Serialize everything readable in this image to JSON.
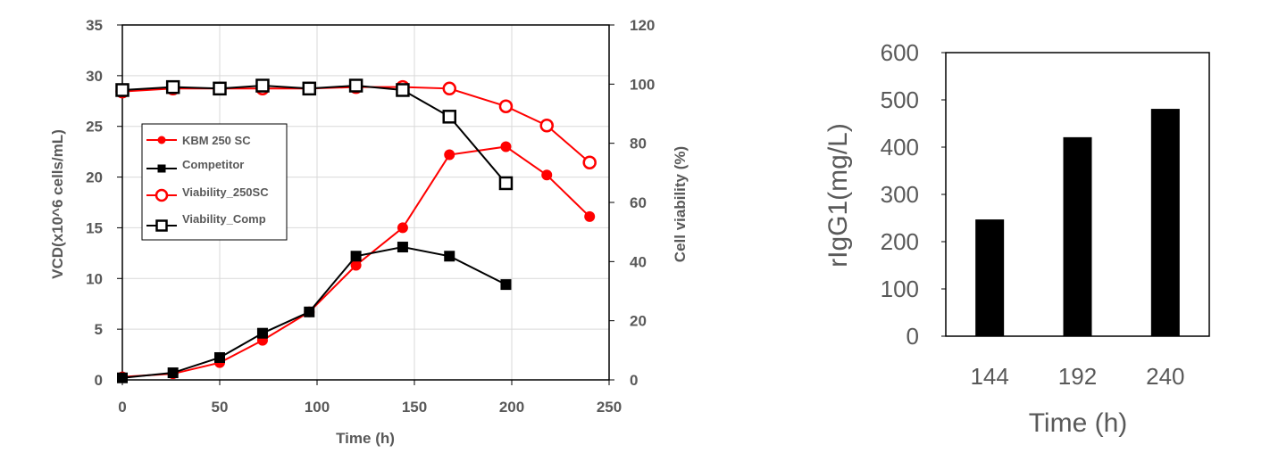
{
  "chart_data": [
    {
      "type": "line",
      "xlabel": "Time (h)",
      "ylabel": "VCD(x10^6  cells/mL)",
      "y2label": "Cell viability (%)",
      "xlim": [
        0,
        250
      ],
      "ylim": [
        0,
        35
      ],
      "y2lim": [
        0,
        120
      ],
      "xticks": [
        0,
        50,
        100,
        150,
        200,
        250
      ],
      "yticks": [
        0,
        5,
        10,
        15,
        20,
        25,
        30,
        35
      ],
      "y2ticks": [
        0,
        20,
        40,
        60,
        80,
        100,
        120
      ],
      "grid": true,
      "legend_position": "upper-left inside plot",
      "series": [
        {
          "name": "KBM  250 SC",
          "axis": "left",
          "color": "#ff0000",
          "marker": "filled-circle",
          "x": [
            0,
            26,
            50,
            72,
            96,
            120,
            144,
            168,
            197,
            218,
            240
          ],
          "y": [
            0.3,
            0.6,
            1.7,
            3.9,
            6.7,
            11.3,
            15.0,
            22.2,
            23.0,
            20.2,
            16.1
          ]
        },
        {
          "name": "Competitor",
          "axis": "left",
          "color": "#000000",
          "marker": "filled-square",
          "x": [
            0,
            26,
            50,
            72,
            96,
            120,
            144,
            168,
            197
          ],
          "y": [
            0.2,
            0.7,
            2.2,
            4.6,
            6.7,
            12.2,
            13.1,
            12.2,
            9.4
          ]
        },
        {
          "name": "Viability_250SC",
          "axis": "right",
          "color": "#ff0000",
          "marker": "open-circle",
          "x": [
            0,
            26,
            50,
            72,
            96,
            120,
            144,
            168,
            197,
            218,
            240
          ],
          "y": [
            97.5,
            98.5,
            98.5,
            98.5,
            98.5,
            99,
            99,
            98.5,
            92.5,
            86,
            73.5
          ]
        },
        {
          "name": "Viability_Comp",
          "axis": "right",
          "color": "#000000",
          "marker": "open-square",
          "x": [
            0,
            26,
            50,
            72,
            96,
            120,
            144,
            168,
            197
          ],
          "y": [
            98,
            99,
            98.5,
            99.5,
            98.5,
            99.5,
            98,
            89,
            66.5
          ]
        }
      ]
    },
    {
      "type": "bar",
      "xlabel": "Time (h)",
      "ylabel": "rIgG1(mg/L)",
      "categories": [
        "144",
        "192",
        "240"
      ],
      "values": [
        247,
        421,
        481
      ],
      "ylim": [
        0,
        600
      ],
      "yticks": [
        0,
        100,
        200,
        300,
        400,
        500,
        600
      ],
      "grid": false,
      "bar_color": "#000000"
    }
  ]
}
